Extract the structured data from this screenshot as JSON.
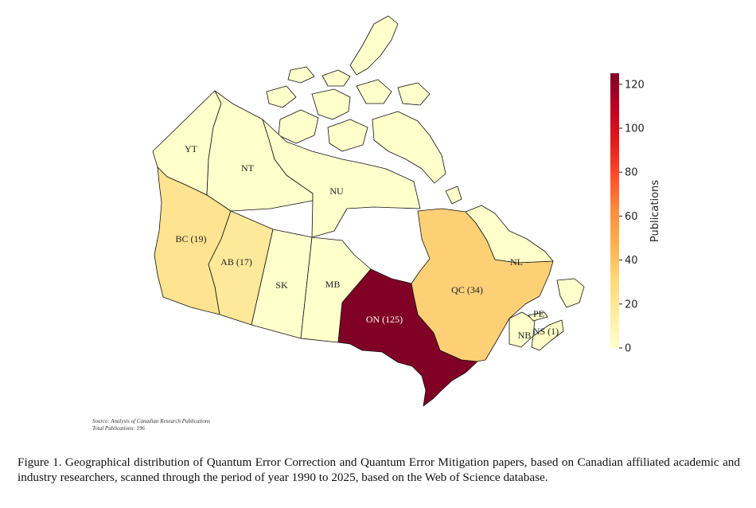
{
  "map_data": {
    "metric": "Publications",
    "provinces": [
      {
        "code": "YT",
        "label": "YT",
        "value": 0,
        "color": "#ffffcc"
      },
      {
        "code": "NT",
        "label": "NT",
        "value": 0,
        "color": "#ffffcc"
      },
      {
        "code": "NU",
        "label": "NU",
        "value": 0,
        "color": "#ffffcc"
      },
      {
        "code": "BC",
        "label": "BC (19)",
        "value": 19,
        "color": "#fee391"
      },
      {
        "code": "AB",
        "label": "AB (17)",
        "value": 17,
        "color": "#fee89a"
      },
      {
        "code": "SK",
        "label": "SK",
        "value": 0,
        "color": "#ffffcc"
      },
      {
        "code": "MB",
        "label": "MB",
        "value": 0,
        "color": "#ffffcc"
      },
      {
        "code": "ON",
        "label": "ON (125)",
        "value": 125,
        "color": "#800026"
      },
      {
        "code": "QC",
        "label": "QC (34)",
        "value": 34,
        "color": "#fed076"
      },
      {
        "code": "NL",
        "label": "NL",
        "value": 0,
        "color": "#ffffcc"
      },
      {
        "code": "NB",
        "label": "NB",
        "value": 0,
        "color": "#ffffcc"
      },
      {
        "code": "PE",
        "label": "PE",
        "value": 0,
        "color": "#ffffcc"
      },
      {
        "code": "NS",
        "label": "NS (1)",
        "value": 1,
        "color": "#fffbc6"
      }
    ]
  },
  "colorbar": {
    "title": "Publications",
    "min": 0,
    "max": 125,
    "ticks": [
      "0",
      "20",
      "40",
      "60",
      "80",
      "100",
      "120"
    ],
    "tick_values": [
      0,
      20,
      40,
      60,
      80,
      100,
      120
    ],
    "colors": [
      "#ffffcc",
      "#ffeda0",
      "#fed976",
      "#feb24c",
      "#fd8d3c",
      "#fc4e2a",
      "#e31a1c",
      "#bd0026",
      "#800026"
    ]
  },
  "source_note": {
    "line1": "Source: Analysis of Canadian Research Publications",
    "line2": "Total Publications: 196"
  },
  "caption": "Figure 1. Geographical distribution of Quantum Error Correction and Quantum Error Mitigation papers, based on Canadian affiliated academic and industry researchers, scanned through the period of year 1990 to 2025, based on the Web of Science database."
}
